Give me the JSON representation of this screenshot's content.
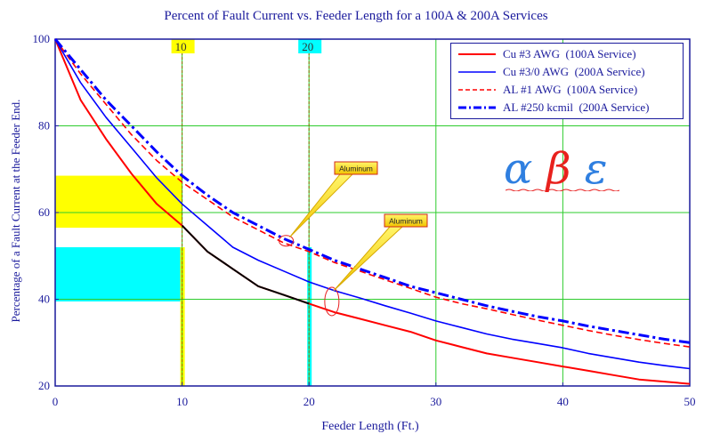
{
  "chart_data": {
    "type": "line",
    "title": "Percent of Fault Current vs. Feeder Length for a 100A & 200A Services",
    "xlabel": "Feeder Length (Ft.)",
    "ylabel": "Percentage of a Fault Current at the Feeder End.",
    "xlim": [
      0,
      50
    ],
    "ylim": [
      20,
      100
    ],
    "x_ticks": [
      "0",
      "10",
      "20",
      "30",
      "40",
      "50"
    ],
    "y_ticks": [
      "20",
      "40",
      "60",
      "80",
      "100"
    ],
    "grid": true,
    "legend_position": "top-right",
    "x": [
      0,
      2,
      4,
      6,
      8,
      10,
      12,
      14,
      16,
      18,
      20,
      22,
      24,
      26,
      28,
      30,
      32,
      34,
      36,
      38,
      40,
      42,
      44,
      46,
      48,
      50
    ],
    "series": [
      {
        "name": "Cu #3 AWG  (100A Service)",
        "color": "#ff0000",
        "style": "solid",
        "width": 2,
        "values": [
          100,
          86,
          77,
          69,
          62,
          57,
          51,
          47,
          43,
          41,
          39,
          37,
          35.5,
          34,
          32.5,
          30.5,
          29,
          27.5,
          26.5,
          25.5,
          24.5,
          23.5,
          22.5,
          21.5,
          21,
          20.5
        ]
      },
      {
        "name": "Cu #3/0 AWG  (200A Service)",
        "color": "#0000ff",
        "style": "solid",
        "width": 1.6,
        "values": [
          100,
          90,
          82,
          75,
          68,
          62,
          57,
          52,
          49,
          46.5,
          44,
          42,
          40.3,
          38.5,
          36.8,
          35,
          33.5,
          32,
          30.8,
          29.8,
          28.8,
          27.5,
          26.5,
          25.5,
          24.7,
          24
        ]
      },
      {
        "name": "AL #1 AWG  (100A Service)",
        "color": "#ff0000",
        "style": "dashed",
        "width": 1.6,
        "values": [
          100,
          92,
          85,
          78,
          72,
          67,
          63,
          59,
          56,
          53,
          51,
          48.5,
          46.5,
          44.5,
          42.5,
          40.5,
          39,
          37.8,
          36.5,
          35.2,
          34,
          32.8,
          31.7,
          30.7,
          29.8,
          29
        ]
      },
      {
        "name": "AL #250 kcmil  (200A Service)",
        "color": "#0000ff",
        "style": "dashdot",
        "width": 3,
        "values": [
          100,
          93,
          86,
          80,
          74,
          68.5,
          64,
          60,
          57,
          54,
          51.5,
          49,
          47,
          45,
          43,
          41.5,
          40,
          38.5,
          37.2,
          36,
          35,
          33.8,
          32.8,
          31.8,
          30.8,
          30
        ]
      }
    ],
    "highlight_bands": [
      {
        "axis": "y",
        "from": 56.5,
        "to": 68.5,
        "color": "#ffff00"
      },
      {
        "axis": "y",
        "from": 39.5,
        "to": 52,
        "color": "#00ffff"
      }
    ],
    "markers": [
      {
        "x": 10,
        "label": "10",
        "color": "#ffff00"
      },
      {
        "x": 20,
        "label": "20",
        "color": "#00ffff"
      }
    ],
    "annotations": [
      {
        "label": "Aluminum",
        "x": 18.2,
        "y": 53.5
      },
      {
        "label": "Aluminum",
        "x": 21.8,
        "y": 39.5
      }
    ],
    "greek_symbols": [
      "α",
      "β",
      "ε"
    ]
  }
}
